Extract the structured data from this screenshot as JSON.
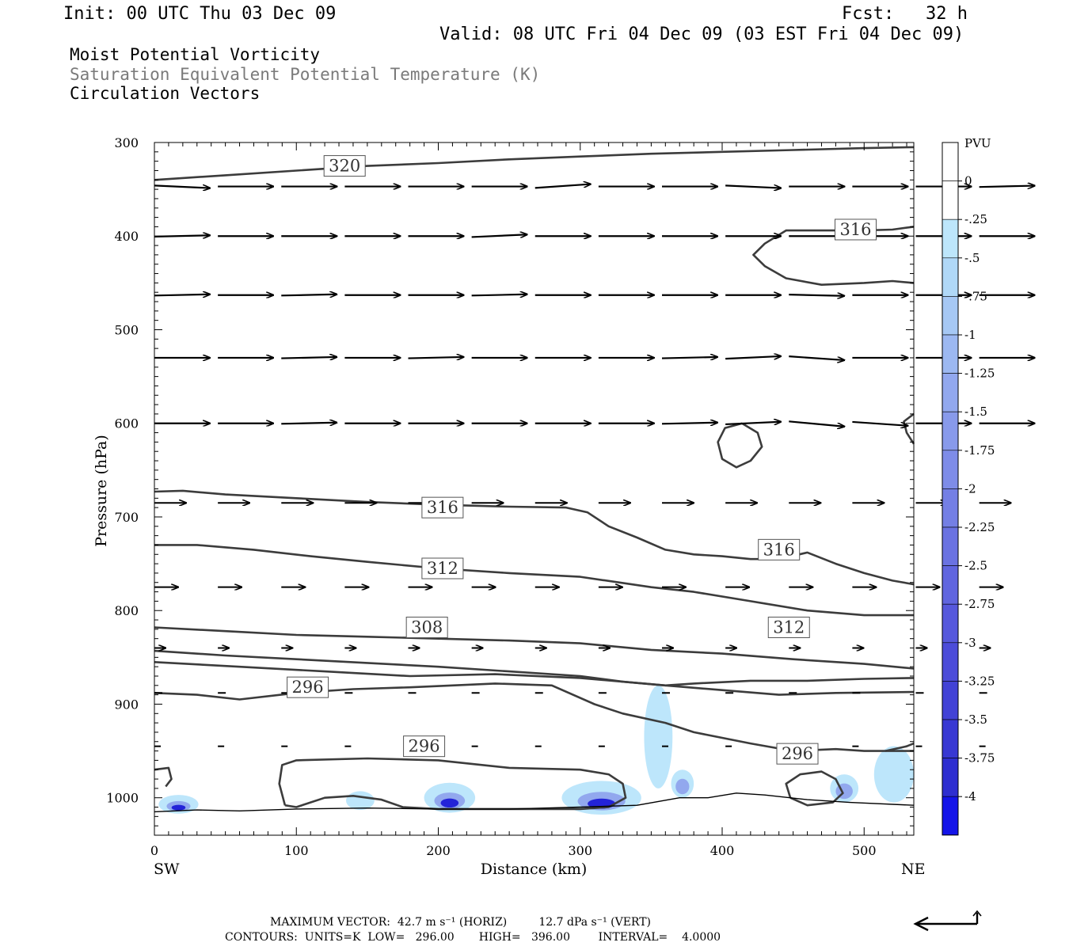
{
  "header": {
    "init": "Init: 00 UTC Thu 03 Dec 09",
    "fcst": "Fcst:   32 h",
    "valid": "Valid: 08 UTC Fri 04 Dec 09 (03 EST Fri 04 Dec 09)"
  },
  "titles": {
    "line1": "Moist Potential Vorticity",
    "line2": "Saturation Equivalent Potential Temperature (K)",
    "line3": "Circulation Vectors"
  },
  "colorbar": {
    "unit": "PVU",
    "labels": [
      "0",
      "-.25",
      "-.5",
      "-.75",
      "-1",
      "-1.25",
      "-1.5",
      "-1.75",
      "-2",
      "-2.25",
      "-2.5",
      "-2.75",
      "-3",
      "-3.25",
      "-3.5",
      "-3.75",
      "-4"
    ],
    "colors": [
      "#ffffff",
      "#ffffff",
      "#bde6fb",
      "#b0d8f7",
      "#a6c8f4",
      "#9cb8f1",
      "#92a8ee",
      "#889aeb",
      "#7e8ce8",
      "#747fe5",
      "#6a72e2",
      "#6065df",
      "#5658dc",
      "#4c4cd9",
      "#4242d6",
      "#3838d3",
      "#2e2ed0",
      "#1414e8"
    ]
  },
  "footer": {
    "line1": "MAXIMUM VECTOR:  42.7 m s⁻¹ (HORIZ)         12.7 dPa s⁻¹ (VERT)",
    "line2": "CONTOURS:  UNITS=K  LOW=   296.00       HIGH=   396.00        INTERVAL=    4.0000"
  },
  "chart_data": {
    "type": "cross-section",
    "xlabel": "Distance (km)",
    "ylabel": "Pressure (hPa)",
    "xlim": [
      0,
      535
    ],
    "ylim": [
      300,
      1040
    ],
    "y_scale": "linear, inverted (pressure increases downward)",
    "x_ticks": [
      "0",
      "100",
      "200",
      "300",
      "400",
      "500"
    ],
    "x_tick_values": [
      0,
      100,
      200,
      300,
      400,
      500
    ],
    "y_ticks": [
      "300",
      "400",
      "500",
      "600",
      "700",
      "800",
      "900",
      "1000"
    ],
    "y_tick_values": [
      300,
      400,
      500,
      600,
      700,
      800,
      900,
      1000
    ],
    "left_end_label": "SW",
    "right_end_label": "NE",
    "contour_labels": [
      {
        "text": "320",
        "x": 134,
        "p": 325
      },
      {
        "text": "316",
        "x": 494,
        "p": 393
      },
      {
        "text": "316",
        "x": 203,
        "p": 690
      },
      {
        "text": "312",
        "x": 203,
        "p": 755
      },
      {
        "text": "316",
        "x": 440,
        "p": 735
      },
      {
        "text": "308",
        "x": 192,
        "p": 818
      },
      {
        "text": "312",
        "x": 447,
        "p": 818
      },
      {
        "text": "296",
        "x": 108,
        "p": 882
      },
      {
        "text": "296",
        "x": 190,
        "p": 945
      },
      {
        "text": "296",
        "x": 453,
        "p": 953
      }
    ],
    "contours": [
      {
        "level": 320,
        "points": [
          [
            0,
            340
          ],
          [
            50,
            335
          ],
          [
            100,
            330
          ],
          [
            150,
            325
          ],
          [
            200,
            322
          ],
          [
            250,
            318
          ],
          [
            300,
            315
          ],
          [
            350,
            312
          ],
          [
            400,
            310
          ],
          [
            450,
            308
          ],
          [
            500,
            306
          ],
          [
            535,
            305
          ]
        ]
      },
      {
        "level": 316,
        "points": [
          [
            535,
            390
          ],
          [
            520,
            393
          ],
          [
            500,
            394
          ],
          [
            470,
            394
          ],
          [
            445,
            394
          ],
          [
            430,
            408
          ],
          [
            422,
            420
          ],
          [
            430,
            432
          ],
          [
            445,
            445
          ],
          [
            470,
            452
          ],
          [
            500,
            450
          ],
          [
            520,
            448
          ],
          [
            535,
            450
          ]
        ]
      },
      {
        "level": 316,
        "points": [
          [
            0,
            673
          ],
          [
            20,
            672
          ],
          [
            50,
            676
          ],
          [
            100,
            680
          ],
          [
            150,
            684
          ],
          [
            200,
            687
          ],
          [
            250,
            689
          ],
          [
            290,
            690
          ],
          [
            305,
            695
          ],
          [
            320,
            710
          ],
          [
            340,
            722
          ],
          [
            360,
            735
          ],
          [
            380,
            740
          ],
          [
            400,
            742
          ],
          [
            420,
            745
          ],
          [
            440,
            745
          ],
          [
            460,
            738
          ],
          [
            480,
            750
          ],
          [
            500,
            760
          ],
          [
            520,
            768
          ],
          [
            535,
            772
          ]
        ]
      },
      {
        "level": 316,
        "points": [
          [
            414,
            600
          ],
          [
            425,
            610
          ],
          [
            428,
            625
          ],
          [
            420,
            640
          ],
          [
            410,
            647
          ],
          [
            400,
            638
          ],
          [
            397,
            620
          ],
          [
            402,
            605
          ],
          [
            414,
            600
          ]
        ]
      },
      {
        "level": 316,
        "points": [
          [
            535,
            590
          ],
          [
            528,
            598
          ],
          [
            530,
            610
          ],
          [
            535,
            622
          ]
        ]
      },
      {
        "level": 312,
        "points": [
          [
            0,
            730
          ],
          [
            30,
            730
          ],
          [
            70,
            735
          ],
          [
            110,
            742
          ],
          [
            150,
            748
          ],
          [
            200,
            755
          ],
          [
            250,
            760
          ],
          [
            300,
            764
          ],
          [
            350,
            775
          ],
          [
            380,
            780
          ],
          [
            420,
            790
          ],
          [
            460,
            800
          ],
          [
            500,
            805
          ],
          [
            535,
            805
          ]
        ]
      },
      {
        "level": 308,
        "points": [
          [
            0,
            818
          ],
          [
            50,
            822
          ],
          [
            100,
            826
          ],
          [
            150,
            828
          ],
          [
            200,
            830
          ],
          [
            250,
            832
          ],
          [
            300,
            835
          ],
          [
            350,
            842
          ],
          [
            400,
            846
          ],
          [
            450,
            852
          ],
          [
            500,
            857
          ],
          [
            535,
            862
          ]
        ]
      },
      {
        "level": 304,
        "points": [
          [
            0,
            843
          ],
          [
            50,
            848
          ],
          [
            100,
            852
          ],
          [
            150,
            856
          ],
          [
            200,
            860
          ],
          [
            250,
            865
          ],
          [
            300,
            870
          ],
          [
            330,
            876
          ],
          [
            360,
            880
          ],
          [
            400,
            885
          ],
          [
            440,
            890
          ],
          [
            480,
            888
          ],
          [
            535,
            887
          ]
        ]
      },
      {
        "level": 300,
        "points": [
          [
            0,
            855
          ],
          [
            60,
            860
          ],
          [
            120,
            865
          ],
          [
            180,
            870
          ],
          [
            240,
            868
          ],
          [
            300,
            872
          ],
          [
            360,
            880
          ],
          [
            380,
            878
          ],
          [
            420,
            875
          ],
          [
            460,
            875
          ],
          [
            500,
            873
          ],
          [
            535,
            872
          ]
        ]
      },
      {
        "level": 296,
        "points": [
          [
            0,
            888
          ],
          [
            30,
            890
          ],
          [
            60,
            895
          ],
          [
            100,
            888
          ],
          [
            140,
            884
          ],
          [
            180,
            882
          ],
          [
            240,
            878
          ],
          [
            280,
            880
          ],
          [
            310,
            900
          ],
          [
            330,
            910
          ],
          [
            360,
            920
          ],
          [
            380,
            930
          ],
          [
            420,
            942
          ],
          [
            450,
            950
          ],
          [
            480,
            948
          ],
          [
            500,
            950
          ],
          [
            535,
            950
          ]
        ]
      },
      {
        "level": 296,
        "points": [
          [
            92,
            1008
          ],
          [
            88,
            985
          ],
          [
            90,
            965
          ],
          [
            100,
            960
          ],
          [
            150,
            958
          ],
          [
            200,
            960
          ],
          [
            250,
            968
          ],
          [
            300,
            970
          ],
          [
            320,
            975
          ],
          [
            330,
            985
          ],
          [
            332,
            1000
          ],
          [
            320,
            1010
          ],
          [
            300,
            1012
          ],
          [
            250,
            1012
          ],
          [
            200,
            1012
          ],
          [
            175,
            1010
          ],
          [
            160,
            1002
          ],
          [
            140,
            998
          ],
          [
            120,
            1000
          ],
          [
            100,
            1010
          ],
          [
            92,
            1008
          ]
        ]
      },
      {
        "level": 296,
        "points": [
          [
            0,
            970
          ],
          [
            10,
            968
          ],
          [
            12,
            980
          ],
          [
            8,
            988
          ]
        ]
      },
      {
        "level": 296,
        "points": [
          [
            448,
            1000
          ],
          [
            445,
            985
          ],
          [
            455,
            975
          ],
          [
            470,
            972
          ],
          [
            480,
            980
          ],
          [
            485,
            995
          ],
          [
            478,
            1005
          ],
          [
            460,
            1008
          ],
          [
            448,
            1000
          ]
        ]
      },
      {
        "level": 296,
        "points": [
          [
            515,
            950
          ],
          [
            530,
            945
          ],
          [
            535,
            942
          ]
        ]
      }
    ],
    "terrain": [
      [
        0,
        1015
      ],
      [
        30,
        1013
      ],
      [
        60,
        1014
      ],
      [
        100,
        1012
      ],
      [
        150,
        1011
      ],
      [
        200,
        1012
      ],
      [
        250,
        1012
      ],
      [
        300,
        1010
      ],
      [
        340,
        1008
      ],
      [
        370,
        1000
      ],
      [
        390,
        1000
      ],
      [
        410,
        995
      ],
      [
        430,
        997
      ],
      [
        460,
        1002
      ],
      [
        490,
        1005
      ],
      [
        535,
        1008
      ]
    ],
    "pv_shading": [
      {
        "center_x": 17,
        "center_p": 1007,
        "half_width_km": 14,
        "half_height_hpa": 10,
        "min_pvu": -3.5
      },
      {
        "center_x": 145,
        "center_p": 1003,
        "half_width_km": 10,
        "half_height_hpa": 10,
        "min_pvu": -0.75
      },
      {
        "center_x": 208,
        "center_p": 1000,
        "half_width_km": 18,
        "half_height_hpa": 16,
        "min_pvu": -3.75
      },
      {
        "center_x": 315,
        "center_p": 1000,
        "half_width_km": 28,
        "half_height_hpa": 18,
        "min_pvu": -3.75
      },
      {
        "center_x": 355,
        "center_p": 935,
        "half_width_km": 10,
        "half_height_hpa": 55,
        "min_pvu": -0.75
      },
      {
        "center_x": 372,
        "center_p": 985,
        "half_width_km": 8,
        "half_height_hpa": 15,
        "min_pvu": -2.0
      },
      {
        "center_x": 486,
        "center_p": 990,
        "half_width_km": 10,
        "half_height_hpa": 15,
        "min_pvu": -2.0
      },
      {
        "center_x": 521,
        "center_p": 975,
        "half_width_km": 14,
        "half_height_hpa": 30,
        "min_pvu": -0.75
      }
    ],
    "vectors": [
      {
        "p": 347,
        "dir": [
          [
            0,
            -2
          ],
          [
            0,
            0
          ],
          [
            0,
            0
          ],
          [
            0,
            0
          ],
          [
            0,
            0
          ],
          [
            0,
            0
          ],
          [
            0,
            3
          ],
          [
            0,
            0
          ],
          [
            0,
            0
          ],
          [
            0,
            -2
          ],
          [
            0,
            0
          ],
          [
            0,
            0
          ],
          [
            0,
            0
          ],
          [
            0,
            1
          ]
        ]
      },
      {
        "p": 400,
        "dir": [
          [
            0,
            1
          ],
          [
            0,
            0
          ],
          [
            0,
            0
          ],
          [
            0,
            0
          ],
          [
            0,
            0
          ],
          [
            0,
            2
          ],
          [
            0,
            0
          ],
          [
            0,
            0
          ],
          [
            0,
            0
          ],
          [
            0,
            0
          ],
          [
            0,
            0
          ],
          [
            0,
            0
          ],
          [
            0,
            0
          ],
          [
            0,
            0
          ]
        ]
      },
      {
        "p": 463,
        "dir": [
          [
            0,
            1
          ],
          [
            0,
            0
          ],
          [
            0,
            1
          ],
          [
            0,
            0
          ],
          [
            0,
            0
          ],
          [
            0,
            1
          ],
          [
            0,
            0
          ],
          [
            0,
            0
          ],
          [
            0,
            0
          ],
          [
            0,
            0
          ],
          [
            0,
            -1
          ],
          [
            0,
            0
          ],
          [
            0,
            0
          ],
          [
            0,
            0
          ]
        ]
      },
      {
        "p": 530,
        "dir": [
          [
            0,
            0
          ],
          [
            0,
            0
          ],
          [
            0,
            1
          ],
          [
            0,
            0
          ],
          [
            0,
            1
          ],
          [
            0,
            0
          ],
          [
            0,
            0
          ],
          [
            0,
            0
          ],
          [
            0,
            1
          ],
          [
            0,
            2
          ],
          [
            0,
            -3
          ],
          [
            0,
            0
          ],
          [
            0,
            0
          ],
          [
            0,
            0
          ]
        ]
      },
      {
        "p": 600,
        "dir": [
          [
            0,
            0
          ],
          [
            0,
            0
          ],
          [
            0,
            1
          ],
          [
            0,
            0
          ],
          [
            0,
            0
          ],
          [
            0,
            0
          ],
          [
            0,
            0
          ],
          [
            0,
            0
          ],
          [
            0,
            1
          ],
          [
            0,
            2
          ],
          [
            0,
            -4
          ],
          [
            0,
            -3
          ],
          [
            0,
            0
          ],
          [
            0,
            0
          ]
        ]
      }
    ]
  }
}
